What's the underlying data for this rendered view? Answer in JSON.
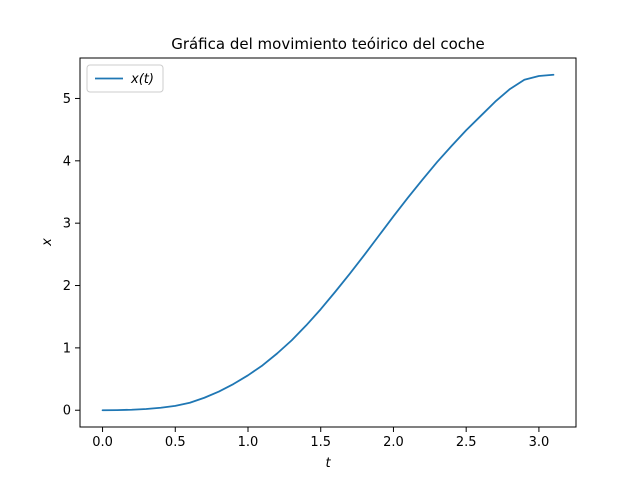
{
  "chart_data": {
    "type": "line",
    "title": "Gráfica del movimiento teóirico del coche",
    "xlabel": "t",
    "ylabel": "x",
    "xlim": [
      -0.155,
      3.255
    ],
    "ylim": [
      -0.269,
      5.649
    ],
    "xticks": [
      0.0,
      0.5,
      1.0,
      1.5,
      2.0,
      2.5,
      3.0
    ],
    "xtick_labels": [
      "0.0",
      "0.5",
      "1.0",
      "1.5",
      "2.0",
      "2.5",
      "3.0"
    ],
    "yticks": [
      0,
      1,
      2,
      3,
      4,
      5
    ],
    "ytick_labels": [
      "0",
      "1",
      "2",
      "3",
      "4",
      "5"
    ],
    "grid": false,
    "legend_position": "top-left",
    "series": [
      {
        "name": "x(t)",
        "color": "#1f77b4",
        "x": [
          0.0,
          0.1,
          0.2,
          0.3,
          0.4,
          0.5,
          0.6,
          0.7,
          0.8,
          0.9,
          1.0,
          1.1,
          1.2,
          1.3,
          1.4,
          1.5,
          1.6,
          1.7,
          1.8,
          1.9,
          2.0,
          2.1,
          2.2,
          2.3,
          2.4,
          2.5,
          2.6,
          2.7,
          2.8,
          2.9,
          3.0,
          3.1
        ],
        "y": [
          0.0,
          0.002,
          0.008,
          0.02,
          0.04,
          0.07,
          0.12,
          0.2,
          0.3,
          0.42,
          0.56,
          0.72,
          0.91,
          1.12,
          1.36,
          1.62,
          1.9,
          2.19,
          2.49,
          2.8,
          3.11,
          3.41,
          3.7,
          3.98,
          4.24,
          4.49,
          4.72,
          4.95,
          5.15,
          5.3,
          5.36,
          5.38
        ]
      }
    ]
  }
}
